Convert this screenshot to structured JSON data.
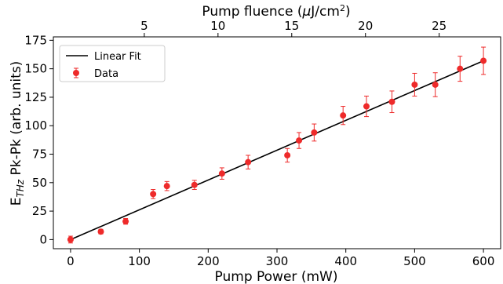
{
  "chart_data": {
    "type": "scatter",
    "xlabel": "Pump Power (mW)",
    "ylabel_main": "E",
    "ylabel_sub": "THz",
    "ylabel_rest": " Pk-Pk (arb. units)",
    "top_xlabel_text": "Pump fluence (",
    "top_xlabel_mu": "μ",
    "top_xlabel_unit": "J/cm",
    "top_xlabel_sup": "2",
    "top_xlabel_close": ")",
    "xlim": [
      -25,
      625
    ],
    "ylim": [
      -8,
      178
    ],
    "x_ticks": [
      0,
      100,
      200,
      300,
      400,
      500,
      600
    ],
    "y_ticks": [
      0,
      25,
      50,
      75,
      100,
      125,
      150,
      175
    ],
    "top_ticks": [
      5,
      10,
      15,
      20,
      25
    ],
    "top_axis_fluence_per_mW": 0.04667,
    "legend": {
      "placement": "top-left",
      "fit_label": "Linear Fit",
      "data_label": "Data"
    },
    "series": [
      {
        "name": "Data",
        "color": "#ee2a2a",
        "points": [
          {
            "x": 0,
            "y": 0,
            "err": 3
          },
          {
            "x": 44,
            "y": 7,
            "err": 2
          },
          {
            "x": 80,
            "y": 16,
            "err": 2.5
          },
          {
            "x": 120,
            "y": 40,
            "err": 4
          },
          {
            "x": 140,
            "y": 47,
            "err": 4
          },
          {
            "x": 180,
            "y": 48,
            "err": 4
          },
          {
            "x": 220,
            "y": 58,
            "err": 5
          },
          {
            "x": 258,
            "y": 68,
            "err": 6
          },
          {
            "x": 315,
            "y": 74,
            "err": 6
          },
          {
            "x": 332,
            "y": 87,
            "err": 7
          },
          {
            "x": 354,
            "y": 94,
            "err": 7.5
          },
          {
            "x": 396,
            "y": 109,
            "err": 8
          },
          {
            "x": 430,
            "y": 117,
            "err": 9
          },
          {
            "x": 467,
            "y": 121,
            "err": 9.5
          },
          {
            "x": 500,
            "y": 136,
            "err": 10
          },
          {
            "x": 530,
            "y": 136,
            "err": 10.5
          },
          {
            "x": 566,
            "y": 150,
            "err": 11
          },
          {
            "x": 600,
            "y": 157,
            "err": 12
          }
        ]
      },
      {
        "name": "Linear Fit",
        "color": "#000000",
        "line": {
          "x": [
            0,
            600
          ],
          "y": [
            0,
            157
          ]
        }
      }
    ]
  }
}
